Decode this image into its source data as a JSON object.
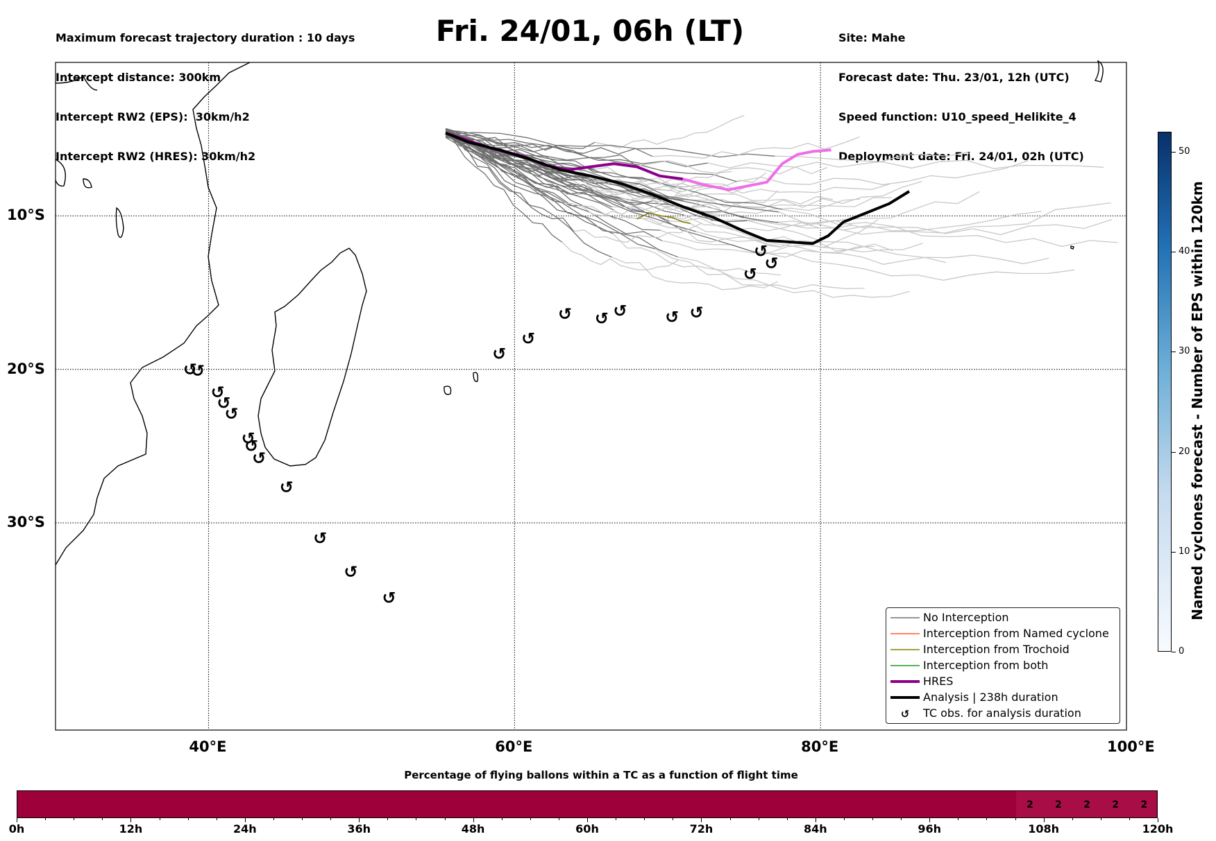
{
  "header_left": [
    "Maximum forecast trajectory duration : 10 days",
    "Intercept distance: 300km",
    "Intercept RW2 (EPS):  30km/h2",
    "Intercept RW2 (HRES): 30km/h2"
  ],
  "title": "Fri. 24/01, 06h (LT)",
  "header_right": [
    "Site: Mahe",
    "Forecast date: Thu. 23/01, 12h (UTC)",
    "Speed function: U10_speed_Helikite_4",
    "Deployment date: Fri. 24/01, 02h (UTC)"
  ],
  "map": {
    "lon_range": [
      30,
      100
    ],
    "lat_range": [
      -43.5,
      0
    ],
    "lon_ticks": [
      {
        "value": 40,
        "label": "40°E"
      },
      {
        "value": 60,
        "label": "60°E"
      },
      {
        "value": 80,
        "label": "80°E"
      },
      {
        "value": 100,
        "label": "100°E"
      }
    ],
    "lat_ticks": [
      {
        "value": -10,
        "label": "10°S"
      },
      {
        "value": -20,
        "label": "20°S"
      },
      {
        "value": -30,
        "label": "30°S"
      }
    ],
    "colors": {
      "no_interception": "#707070",
      "no_interception_late": "#c8c8c8",
      "named_cyclone": "#ff5a1f",
      "trochoid": "#808000",
      "both": "#1a9e1a",
      "hres": "#8b008b",
      "hres_late": "#ee6ee8",
      "analysis": "#000000"
    },
    "deployment_site": {
      "lon": 55.5,
      "lat": -4.6
    },
    "analysis_track": [
      [
        55.5,
        -4.6
      ],
      [
        57.0,
        -5.2
      ],
      [
        59.0,
        -5.7
      ],
      [
        61.0,
        -6.3
      ],
      [
        63.0,
        -7.0
      ],
      [
        65.0,
        -7.4
      ],
      [
        67.0,
        -7.9
      ],
      [
        69.0,
        -8.6
      ],
      [
        71.0,
        -9.4
      ],
      [
        73.0,
        -10.1
      ],
      [
        75.0,
        -11.0
      ],
      [
        76.5,
        -11.6
      ],
      [
        78.0,
        -11.7
      ],
      [
        79.5,
        -11.8
      ],
      [
        80.5,
        -11.3
      ],
      [
        81.5,
        -10.4
      ],
      [
        83.0,
        -9.8
      ],
      [
        84.5,
        -9.2
      ],
      [
        85.8,
        -8.4
      ]
    ],
    "hres_track": [
      [
        55.5,
        -4.6
      ],
      [
        57.0,
        -5.1
      ],
      [
        58.5,
        -5.6
      ],
      [
        60.5,
        -6.1
      ],
      [
        62.0,
        -6.7
      ],
      [
        63.5,
        -7.0
      ],
      [
        65.0,
        -6.8
      ],
      [
        66.5,
        -6.6
      ],
      [
        68.0,
        -6.8
      ],
      [
        69.5,
        -7.4
      ],
      [
        71.0,
        -7.6
      ],
      [
        72.5,
        -8.0
      ],
      [
        74.0,
        -8.3
      ],
      [
        75.5,
        -8.0
      ],
      [
        76.5,
        -7.8
      ],
      [
        77.5,
        -6.6
      ],
      [
        78.5,
        -6.0
      ],
      [
        79.5,
        -5.8
      ],
      [
        80.7,
        -5.7
      ]
    ],
    "trochoid_track": [
      [
        68.0,
        -10.2
      ],
      [
        68.8,
        -9.8
      ],
      [
        69.6,
        -10.0
      ],
      [
        70.3,
        -10.1
      ],
      [
        71.0,
        -10.4
      ],
      [
        71.5,
        -10.5
      ]
    ],
    "tc_obs": [
      [
        38.8,
        -20.0
      ],
      [
        39.3,
        -20.1
      ],
      [
        40.6,
        -21.5
      ],
      [
        41.0,
        -22.2
      ],
      [
        41.5,
        -22.9
      ],
      [
        42.6,
        -24.5
      ],
      [
        42.8,
        -25.0
      ],
      [
        43.3,
        -25.8
      ],
      [
        45.1,
        -27.7
      ],
      [
        47.3,
        -31.0
      ],
      [
        49.3,
        -33.2
      ],
      [
        51.8,
        -34.9
      ],
      [
        59.0,
        -19.0
      ],
      [
        60.9,
        -18.0
      ],
      [
        63.3,
        -16.4
      ],
      [
        65.7,
        -16.7
      ],
      [
        66.9,
        -16.2
      ],
      [
        70.3,
        -16.6
      ],
      [
        71.9,
        -16.3
      ],
      [
        75.4,
        -13.8
      ],
      [
        76.1,
        -12.3
      ],
      [
        76.8,
        -13.1
      ]
    ]
  },
  "legend": [
    {
      "key": "no_interception",
      "label": "No Interception",
      "style": "thin",
      "color": "#707070"
    },
    {
      "key": "named_cyclone",
      "label": "Interception from Named cyclone",
      "style": "thin",
      "color": "#ff5a1f"
    },
    {
      "key": "trochoid",
      "label": "Interception from Trochoid",
      "style": "thin",
      "color": "#808000"
    },
    {
      "key": "both",
      "label": "Interception from both",
      "style": "thin",
      "color": "#1a9e1a"
    },
    {
      "key": "hres",
      "label": "HRES",
      "style": "thick",
      "color": "#8b008b"
    },
    {
      "key": "analysis",
      "label": "Analysis | 238h duration",
      "style": "thick",
      "color": "#000000"
    },
    {
      "key": "tc",
      "label": "TC obs. for analysis duration",
      "style": "cyclone-icon",
      "color": "#000000"
    }
  ],
  "colorbar": {
    "title": "Named cyclones forecast - Number of EPS within 120km",
    "ticks": [
      0,
      10,
      20,
      30,
      40,
      50
    ],
    "max": 52
  },
  "bottom_bar": {
    "title": "Percentage of flying ballons within a TC as a function of flight time",
    "time_labels": [
      "0h",
      "12h",
      "24h",
      "36h",
      "48h",
      "60h",
      "72h",
      "84h",
      "96h",
      "108h",
      "120h"
    ],
    "max_hours": 120,
    "values": [
      {
        "hour": 105,
        "value": "2"
      },
      {
        "hour": 108,
        "value": "2"
      },
      {
        "hour": 111,
        "value": "2"
      },
      {
        "hour": 114,
        "value": "2"
      },
      {
        "hour": 117,
        "value": "2"
      }
    ],
    "highlight_from_hour": 105
  }
}
